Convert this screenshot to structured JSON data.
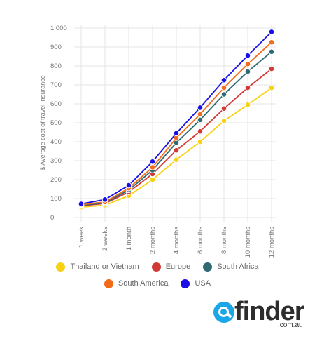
{
  "chart_data": {
    "type": "line",
    "ylabel": "$ Average cost of travel insurance",
    "xlabel": "",
    "ylim": [
      0,
      1000
    ],
    "yticks": [
      "0",
      "100",
      "200",
      "300",
      "400",
      "500",
      "600",
      "700",
      "800",
      "900",
      "1,000"
    ],
    "categories": [
      "1 week",
      "2 weeks",
      "1 month",
      "2 months",
      "4 months",
      "6 months",
      "8 months",
      "10 months",
      "12 months"
    ],
    "grid": true,
    "legend_position": "bottom",
    "series": [
      {
        "name": "Thailand or Vietnam",
        "color": "#f8d112",
        "values": [
          55,
          65,
          115,
          200,
          305,
          400,
          510,
          595,
          685
        ]
      },
      {
        "name": "Europe",
        "color": "#d13a35",
        "values": [
          62,
          74,
          135,
          230,
          355,
          455,
          575,
          685,
          785
        ]
      },
      {
        "name": "South Africa",
        "color": "#2e6b73",
        "values": [
          65,
          78,
          145,
          250,
          395,
          515,
          650,
          770,
          875
        ]
      },
      {
        "name": "South America",
        "color": "#f26b1d",
        "values": [
          68,
          82,
          155,
          265,
          420,
          545,
          685,
          810,
          925
        ]
      },
      {
        "name": "USA",
        "color": "#1a0ee6",
        "values": [
          72,
          95,
          170,
          295,
          445,
          580,
          725,
          855,
          980
        ]
      }
    ]
  },
  "logo": {
    "word": "finder",
    "sub": ".com.au"
  }
}
